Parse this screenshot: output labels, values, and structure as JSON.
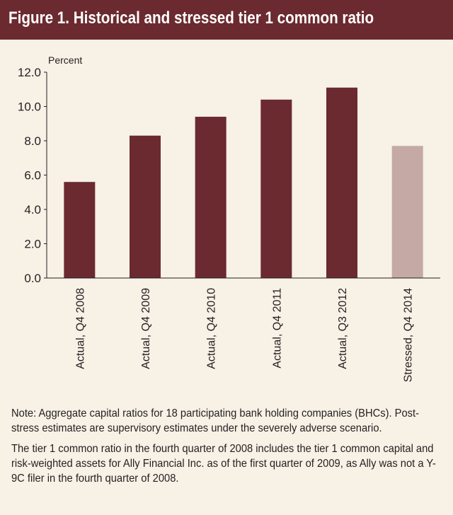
{
  "header": {
    "title": "Figure 1. Historical and stressed tier 1 common ratio"
  },
  "chart_data": {
    "type": "bar",
    "ylabel": "Percent",
    "ylim": [
      0,
      12
    ],
    "yticks": [
      "0.0",
      "2.0",
      "4.0",
      "6.0",
      "8.0",
      "10.0",
      "12.0"
    ],
    "categories": [
      "Actual, Q4 2008",
      "Actual, Q4 2009",
      "Actual, Q4 2010",
      "Actual, Q4 2011",
      "Actual, Q3 2012",
      "Stressed, Q4 2014"
    ],
    "values": [
      5.6,
      8.3,
      9.4,
      10.4,
      11.1,
      7.7
    ],
    "colors": [
      "#6b2a2f",
      "#6b2a2f",
      "#6b2a2f",
      "#6b2a2f",
      "#6b2a2f",
      "#c5a9a5"
    ],
    "grid": false,
    "legend": "none"
  },
  "notes": {
    "note1": "Note: Aggregate capital ratios for 18 participating bank holding companies (BHCs). Post-stress estimates are supervisory estimates under the severely adverse scenario.",
    "note2": "The tier 1 common ratio in the fourth quarter of 2008 includes the tier 1 common capital and risk-weighted assets for Ally Financial Inc. as of the first quarter of 2009, as Ally was not a Y-9C filer in the fourth quarter of 2008."
  }
}
